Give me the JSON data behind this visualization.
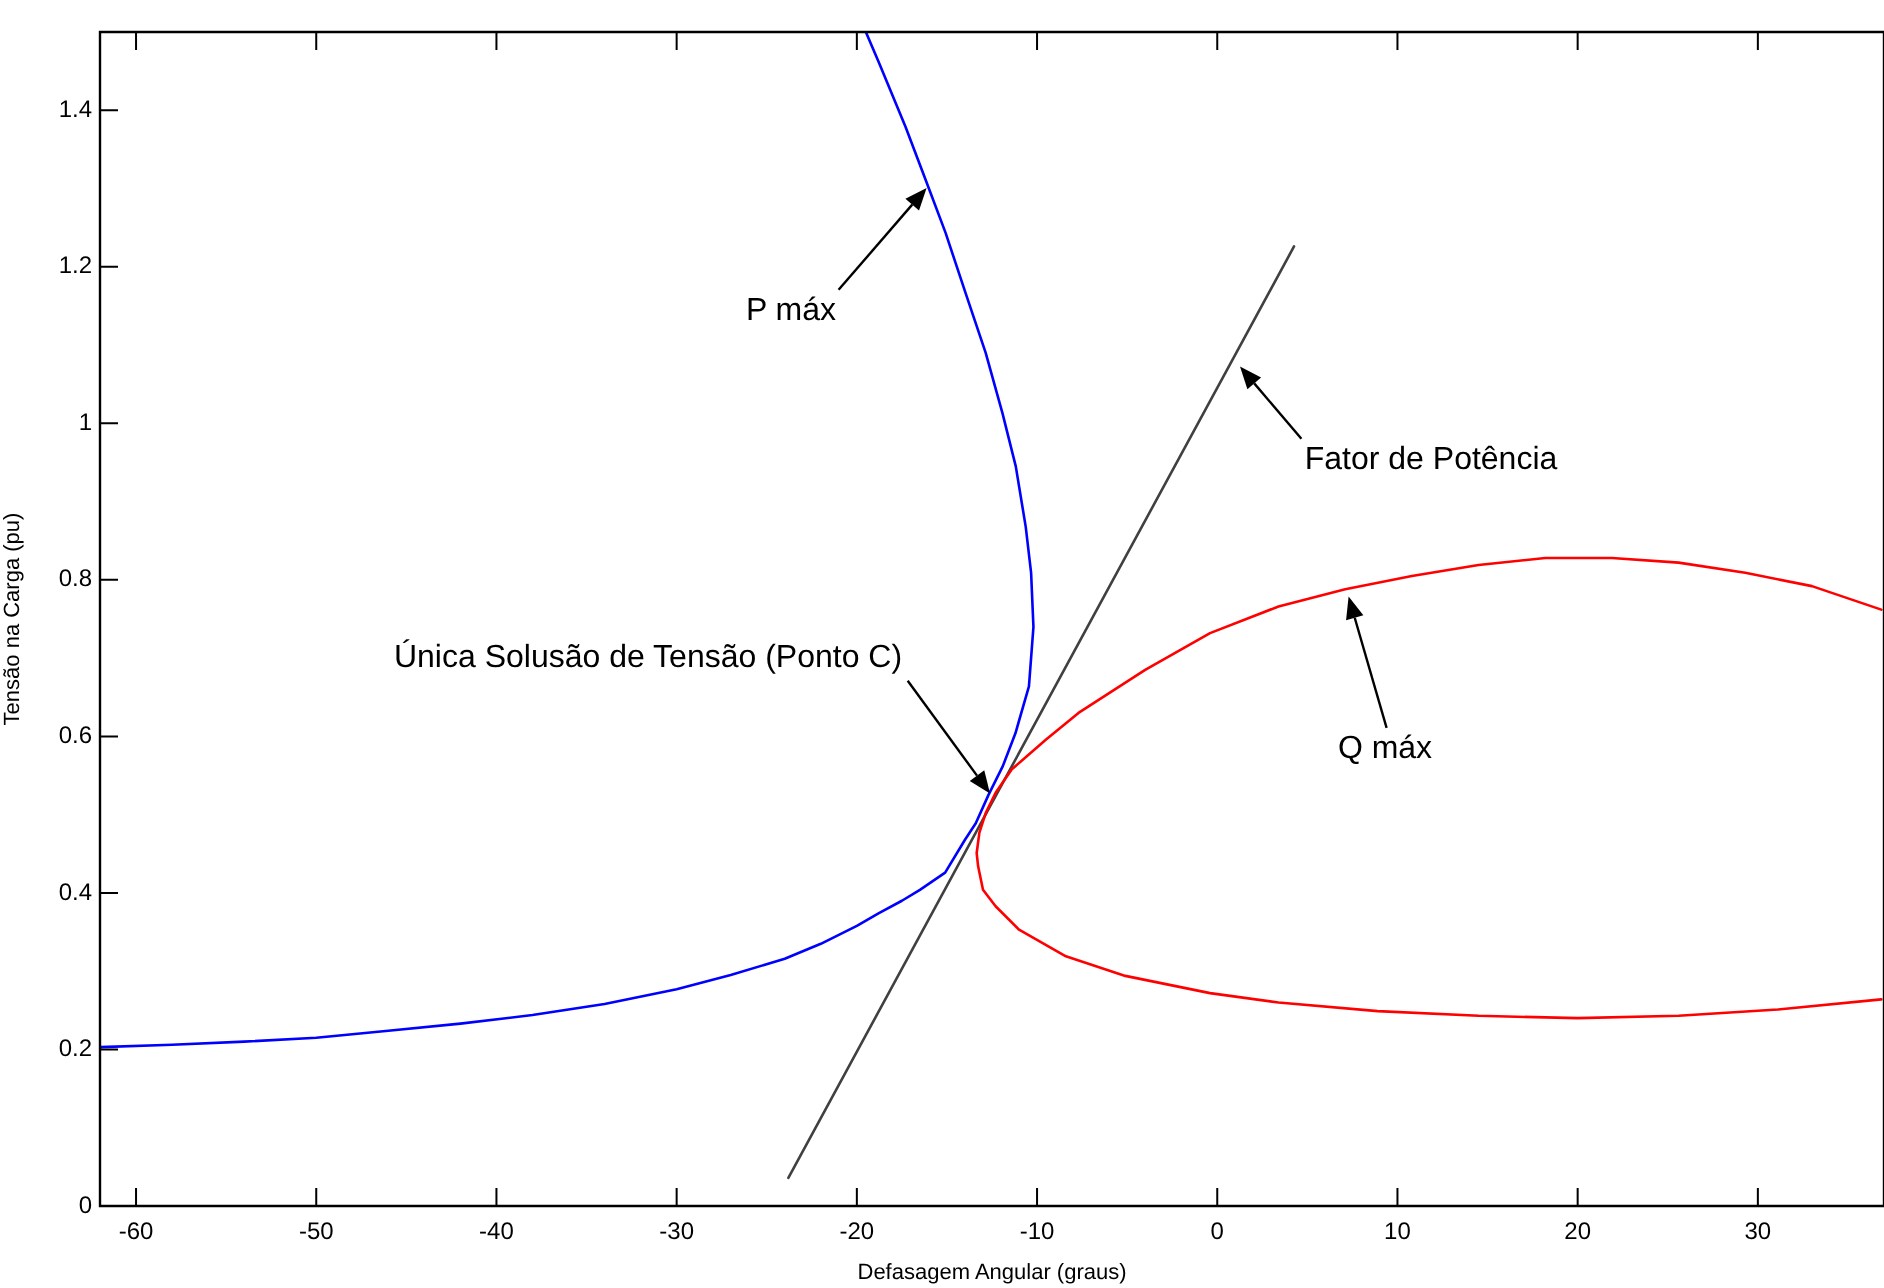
{
  "chart_data": {
    "type": "line",
    "xlabel": "Defasagem Angular (graus)",
    "ylabel": "Tensão na Carga (pu)",
    "xlim": [
      -62,
      37
    ],
    "ylim": [
      0,
      1.5
    ],
    "xticks": [
      -60,
      -50,
      -40,
      -30,
      -20,
      -10,
      0,
      10,
      20,
      30
    ],
    "yticks": [
      0,
      0.2,
      0.4,
      0.6,
      0.8,
      1,
      1.2,
      1.4
    ],
    "marker": "none",
    "line_style": "solid",
    "series": [
      {
        "color": "#0000ff",
        "x": [
          -62,
          -58,
          -54,
          -50,
          -46,
          -42,
          -38,
          -34,
          -30,
          -27,
          -24,
          -22,
          -20,
          -18.8,
          -17.5,
          -16.5,
          -15.1,
          -14,
          -13.4,
          -12.7,
          -11.9,
          -11.2,
          -10.45,
          -10.2,
          -10.33,
          -10.63,
          -11.18,
          -11.92,
          -12.85,
          -13.96,
          -15.07,
          -16.18,
          -17.3,
          -18.76,
          -19.5
        ],
        "values": [
          0.203,
          0.206,
          0.21,
          0.215,
          0.224,
          0.233,
          0.244,
          0.258,
          0.277,
          0.295,
          0.316,
          0.335,
          0.358,
          0.374,
          0.39,
          0.404,
          0.426,
          0.468,
          0.489,
          0.525,
          0.562,
          0.604,
          0.664,
          0.74,
          0.809,
          0.868,
          0.945,
          1.013,
          1.09,
          1.166,
          1.243,
          1.311,
          1.379,
          1.46,
          1.5
        ]
      },
      {
        "color": "#ff0000",
        "x": [
          36.85,
          33,
          29.3,
          25.6,
          21.9,
          18.2,
          14.5,
          10.8,
          7.1,
          3.4,
          -0.4,
          -4,
          -7.7,
          -9.5,
          -11.4,
          -12.3,
          -12.85,
          -13.2,
          -13.35,
          -13.27,
          -13,
          -12.3,
          -11,
          -8.4,
          -5.1,
          -0.4,
          3.4,
          8.9,
          14.5,
          20,
          25.6,
          31.1,
          36.85
        ],
        "values": [
          0.762,
          0.792,
          0.809,
          0.822,
          0.828,
          0.828,
          0.819,
          0.805,
          0.788,
          0.766,
          0.732,
          0.685,
          0.63,
          0.596,
          0.558,
          0.528,
          0.502,
          0.477,
          0.451,
          0.434,
          0.404,
          0.383,
          0.353,
          0.319,
          0.294,
          0.272,
          0.26,
          0.249,
          0.243,
          0.24,
          0.243,
          0.251,
          0.264
        ]
      },
      {
        "color": "#404040",
        "x": [
          -23.8,
          4.26
        ],
        "values": [
          0.036,
          1.226
        ]
      }
    ],
    "annotations": [
      "P máx",
      "Fator de Potência",
      "Única Solusão de Tensão (Ponto C)",
      "Q máx"
    ]
  }
}
